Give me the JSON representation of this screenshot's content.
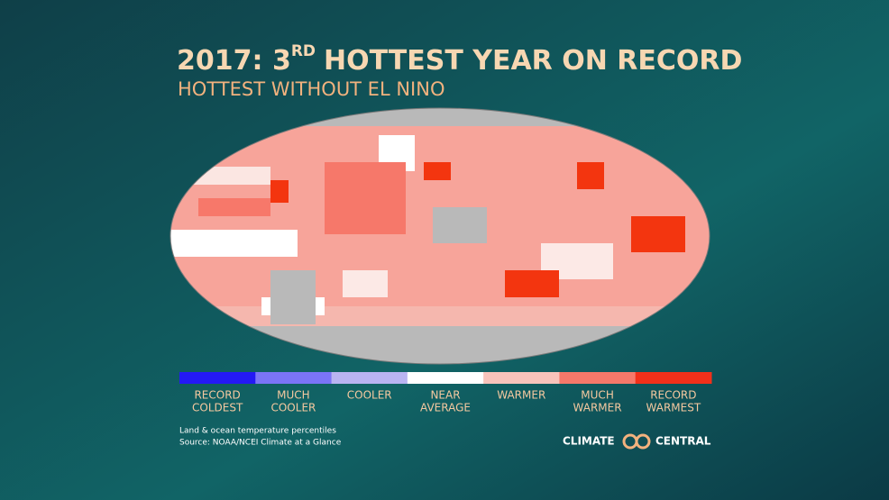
{
  "header": {
    "title_prefix": "2017: 3",
    "title_superscript": "RD",
    "title_suffix": "HOTTEST YEAR ON RECORD",
    "subtitle": "HOTTEST WITHOUT EL NINO"
  },
  "legend": {
    "items": [
      {
        "lines": [
          "RECORD",
          "COLDEST"
        ],
        "color": "#2419f5"
      },
      {
        "lines": [
          "MUCH",
          "COOLER"
        ],
        "color": "#7b74f7"
      },
      {
        "lines": [
          "COOLER"
        ],
        "color": "#b9b4f2"
      },
      {
        "lines": [
          "NEAR",
          "AVERAGE"
        ],
        "color": "#ffffff"
      },
      {
        "lines": [
          "WARMER"
        ],
        "color": "#f8c3bb"
      },
      {
        "lines": [
          "MUCH",
          "WARMER"
        ],
        "color": "#f6786a"
      },
      {
        "lines": [
          "RECORD",
          "WARMEST"
        ],
        "color": "#f2301a"
      }
    ]
  },
  "footnotes": [
    "Land & ocean temperature percentiles",
    "Source: NOAA/NCEI Climate at a Glance"
  ],
  "logo": {
    "left": "CLIMATE",
    "right": "CENTRAL"
  }
}
